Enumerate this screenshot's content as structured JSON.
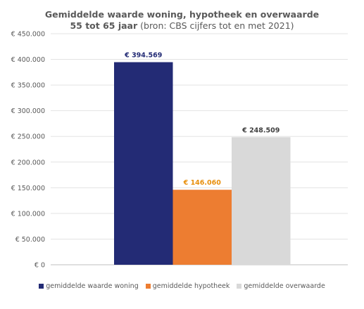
{
  "chart_data": {
    "type": "bar",
    "title_line1": "Gemiddelde waarde woning, hypotheek en overwaarde",
    "title_line2_bold": "55 tot 65 jaar",
    "title_line2_normal": " (bron: CBS cijfers tot en met 2021)",
    "ylim": [
      0,
      450000
    ],
    "y_ticks": [
      "€ 0",
      "€ 50.000",
      "€ 100.000",
      "€ 150.000",
      "€ 200.000",
      "€ 250.000",
      "€ 300.000",
      "€ 350.000",
      "€ 400.000",
      "€ 450.000"
    ],
    "grid": true,
    "legend_position": "bottom",
    "series": [
      {
        "name": "gemiddelde waarde woning",
        "value": 394569,
        "label": "€ 394.569",
        "color": "#232b75",
        "label_color": "#232b75"
      },
      {
        "name": "gemiddelde hypotheek",
        "value": 146060,
        "label": "€ 146.060",
        "color": "#ed7d31",
        "label_color": "#e8900e"
      },
      {
        "name": "gemiddelde overwaarde",
        "value": 248509,
        "label": "€ 248.509",
        "color": "#d9d9d9",
        "label_color": "#404040"
      }
    ]
  }
}
